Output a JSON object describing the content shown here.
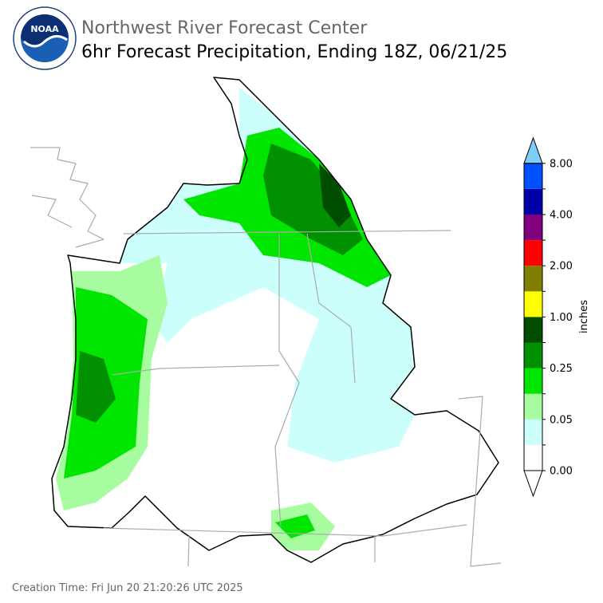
{
  "header": {
    "logo_text": "NOAA",
    "title": "Northwest River Forecast Center",
    "subtitle": "6hr Forecast Precipitation, Ending 18Z, 06/21/25"
  },
  "legend": {
    "label": "inches",
    "ticks": [
      "0.00",
      "0.05",
      "0.25",
      "1.00",
      "2.00",
      "4.00",
      "8.00"
    ],
    "colors": [
      "#ffffff",
      "#ccfffb",
      "#a8fca0",
      "#00e600",
      "#009000",
      "#004d00",
      "#ffff00",
      "#807f00",
      "#ff0000",
      "#800080",
      "#0000aa",
      "#0050ff"
    ],
    "over_color": "#7ecff7",
    "under_color": "#ffffff"
  },
  "footer": {
    "creation_time": "Creation Time: Fri Jun 20 21:20:26 UTC 2025"
  }
}
